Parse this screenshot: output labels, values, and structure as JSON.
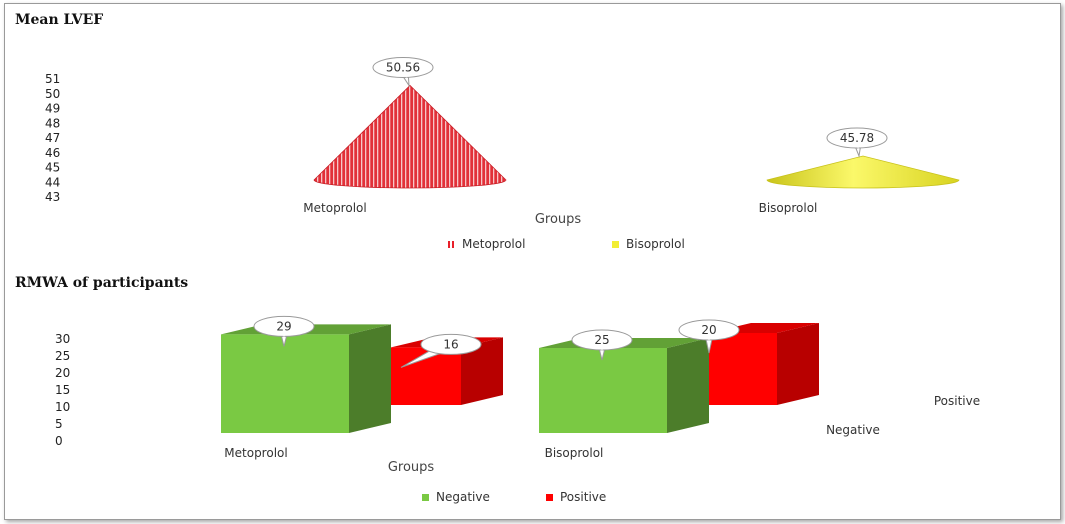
{
  "chart_data": [
    {
      "type": "bar",
      "variant": "3d-cone",
      "title": "Mean LVEF",
      "categories": [
        "Metoprolol",
        "Bisoprolol"
      ],
      "series": [
        {
          "name": "Metoprolol",
          "values": [
            50.56,
            null
          ],
          "color": "#e8202a"
        },
        {
          "name": "Bisoprolol",
          "values": [
            null,
            45.78
          ],
          "color": "#f2ee34"
        }
      ],
      "data_labels": [
        "50.56",
        "45.78"
      ],
      "xlabel": "Groups",
      "ylabel": "",
      "yticks": [
        "43",
        "44",
        "45",
        "46",
        "47",
        "48",
        "49",
        "50",
        "51"
      ],
      "ylim": [
        43,
        51
      ],
      "legend": "bottom",
      "grid": false
    },
    {
      "type": "bar",
      "variant": "3d-column",
      "title": "RMWA of participants",
      "categories": [
        "Metoprolol",
        "Bisoprolol"
      ],
      "series": [
        {
          "name": "Negative",
          "values": [
            29,
            25
          ],
          "color": "#7ac943"
        },
        {
          "name": "Positive",
          "values": [
            16,
            20
          ],
          "color": "#ff0000"
        }
      ],
      "depth_axis_labels": [
        "Negative",
        "Positive"
      ],
      "xlabel": "Groups",
      "ylabel": "",
      "yticks": [
        "0",
        "5",
        "10",
        "15",
        "20",
        "25",
        "30"
      ],
      "ylim": [
        0,
        30
      ],
      "legend": "bottom",
      "grid": false
    }
  ]
}
